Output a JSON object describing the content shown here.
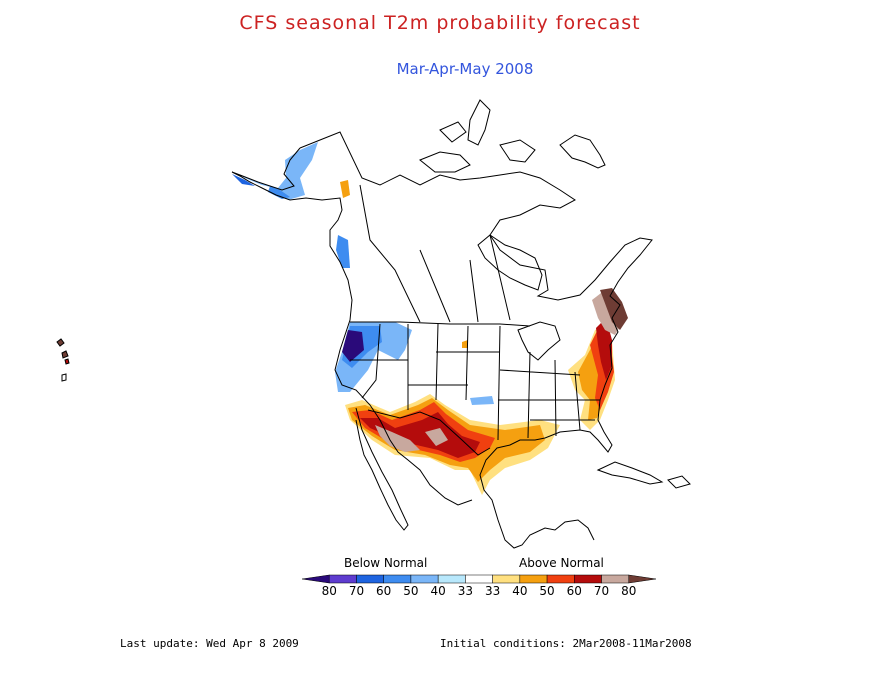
{
  "header": {
    "title": "CFS seasonal T2m probability forecast",
    "title_color": "#cc2222",
    "subtitle": "Mar-Apr-May 2008",
    "subtitle_color": "#3355dd"
  },
  "legend": {
    "below_label": "Below Normal",
    "above_label": "Above Normal",
    "tick_labels": [
      "80",
      "70",
      "60",
      "50",
      "40",
      "33",
      "33",
      "40",
      "50",
      "60",
      "70",
      "80"
    ],
    "colors": [
      "#2a0a7a",
      "#5e3ccf",
      "#1e64e0",
      "#3e8cf0",
      "#7ab6f8",
      "#b8e8fc",
      "#ffffff",
      "#ffe080",
      "#f5a010",
      "#f04010",
      "#b40c0c",
      "#c8a89e",
      "#6e3c34"
    ]
  },
  "footer": {
    "last_update": "Last update: Wed Apr 8 2009",
    "initial_conditions": "Initial conditions: 2Mar2008-11Mar2008"
  }
}
